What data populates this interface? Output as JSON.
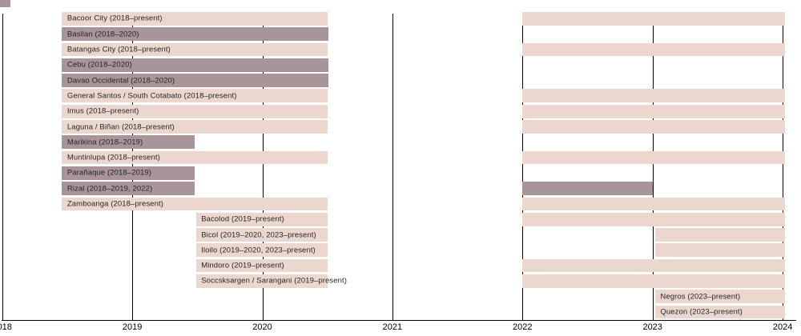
{
  "chart_data": {
    "type": "timeline",
    "title": "",
    "xlabel": "",
    "ylabel": "",
    "grid": "vertical-year-lines",
    "legend": "none",
    "colors": {
      "active": "#ebd7cd",
      "defunct": "#a9949a",
      "axis": "#000000",
      "text": "#262626"
    },
    "x_axis": {
      "range": [
        2018,
        2024.05
      ],
      "ticks": [
        2018,
        2019,
        2020,
        2021,
        2022,
        2023,
        2024
      ],
      "tick_labels": [
        "2018",
        "2019",
        "2020",
        "2021",
        "2022",
        "2023",
        "2024"
      ]
    },
    "rows": [
      {
        "label": "Bacoor City (2018–present)",
        "status": "active",
        "spans": [
          [
            2018.46,
            2020.5
          ],
          [
            2022.0,
            2024.02
          ]
        ]
      },
      {
        "label": "Basilan (2018–2020)",
        "status": "defunct",
        "spans": [
          [
            2018.46,
            2020.51
          ]
        ]
      },
      {
        "label": "Batangas City (2018–present)",
        "status": "active",
        "spans": [
          [
            2018.46,
            2020.5
          ],
          [
            2022.0,
            2024.02
          ]
        ]
      },
      {
        "label": "Cebu (2018–2020)",
        "status": "defunct",
        "spans": [
          [
            2018.46,
            2020.51
          ]
        ]
      },
      {
        "label": "Davao Occidental (2018–2020)",
        "status": "defunct",
        "spans": [
          [
            2018.46,
            2020.51
          ]
        ]
      },
      {
        "label": "General Santos / South Cotabato (2018–present)",
        "status": "active",
        "spans": [
          [
            2018.46,
            2020.5
          ],
          [
            2022.0,
            2024.02
          ]
        ]
      },
      {
        "label": "Imus (2018–present)",
        "status": "active",
        "spans": [
          [
            2018.46,
            2020.5
          ],
          [
            2022.0,
            2024.02
          ]
        ]
      },
      {
        "label": "Laguna / Biñan (2018–present)",
        "status": "active",
        "spans": [
          [
            2018.46,
            2020.5
          ],
          [
            2022.0,
            2024.02
          ]
        ]
      },
      {
        "label": "Marikina (2018–2019)",
        "status": "defunct",
        "spans": [
          [
            2018.46,
            2019.48
          ]
        ]
      },
      {
        "label": "Muntinlupa (2018–present)",
        "status": "active",
        "spans": [
          [
            2018.46,
            2020.5
          ],
          [
            2022.0,
            2024.02
          ]
        ]
      },
      {
        "label": "Parañaque (2018–2019)",
        "status": "defunct",
        "spans": [
          [
            2018.46,
            2019.48
          ]
        ]
      },
      {
        "label": "Rizal (2018–2019, 2022)",
        "status": "defunct",
        "spans": [
          [
            2018.46,
            2019.48
          ],
          [
            2022.0,
            2023.0
          ]
        ]
      },
      {
        "label": "Zamboanga (2018–present)",
        "status": "active",
        "spans": [
          [
            2018.46,
            2020.5
          ],
          [
            2022.0,
            2024.02
          ]
        ]
      },
      {
        "label": "Bacolod (2019–present)",
        "status": "active",
        "spans": [
          [
            2019.49,
            2020.5
          ],
          [
            2022.0,
            2024.02
          ]
        ]
      },
      {
        "label": "Bicol (2019–2020, 2023–present)",
        "status": "active",
        "spans": [
          [
            2019.49,
            2020.5
          ],
          [
            2023.02,
            2024.02
          ]
        ]
      },
      {
        "label": "Iloilo (2019–2020, 2023–present)",
        "status": "active",
        "spans": [
          [
            2019.49,
            2020.5
          ],
          [
            2023.02,
            2024.02
          ]
        ]
      },
      {
        "label": "Mindoro (2019–present)",
        "status": "active",
        "spans": [
          [
            2019.49,
            2020.5
          ],
          [
            2022.0,
            2024.02
          ]
        ]
      },
      {
        "label": "Soccsksargen / Sarangani (2019–present)",
        "status": "active",
        "spans": [
          [
            2019.49,
            2020.5
          ],
          [
            2022.0,
            2024.02
          ]
        ]
      },
      {
        "label": "Negros (2023–present)",
        "status": "active",
        "spans": [
          [
            2023.02,
            2024.02
          ]
        ]
      },
      {
        "label": "Quezon (2023–present)",
        "status": "active",
        "spans": [
          [
            2023.02,
            2024.02
          ]
        ]
      }
    ]
  }
}
